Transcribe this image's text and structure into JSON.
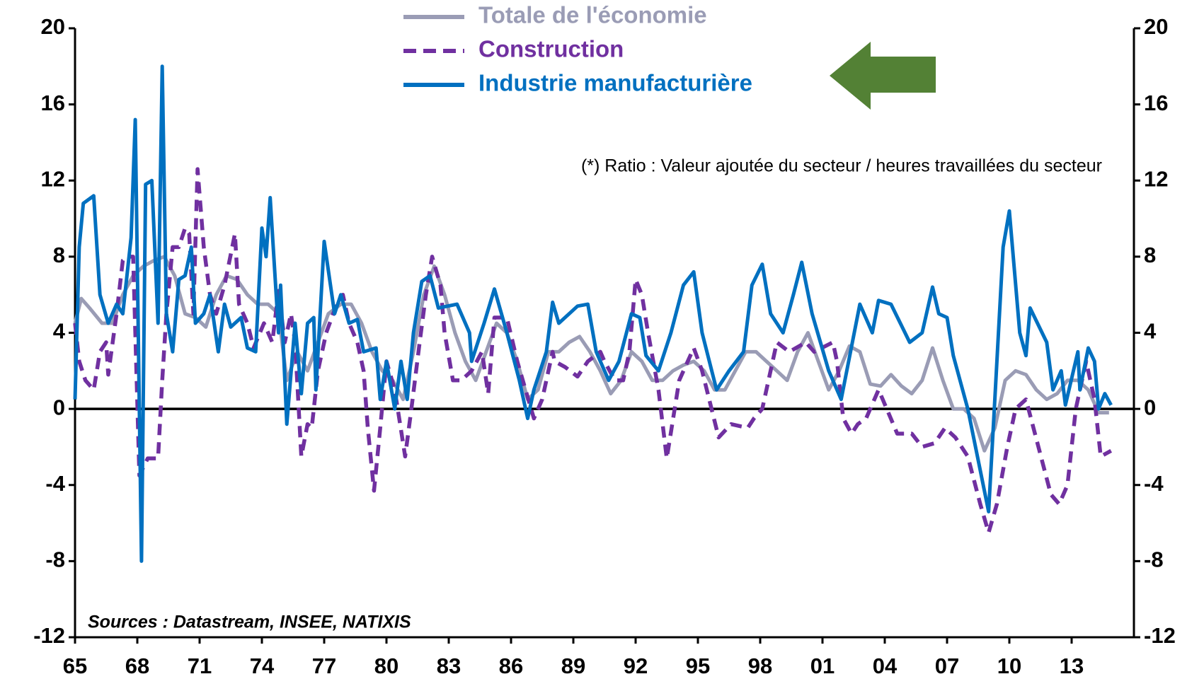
{
  "chart_data": {
    "type": "line",
    "annotation": "(*) Ratio : Valeur ajoutée du secteur / heures travaillées du secteur",
    "source": "Sources : Datastream, INSEE, NATIXIS",
    "legend": "top",
    "xlim": [
      1965,
      2016
    ],
    "xticks": [
      {
        "value": 1965,
        "label": "65"
      },
      {
        "value": 1968,
        "label": "68"
      },
      {
        "value": 1971,
        "label": "71"
      },
      {
        "value": 1974,
        "label": "74"
      },
      {
        "value": 1977,
        "label": "77"
      },
      {
        "value": 1980,
        "label": "80"
      },
      {
        "value": 1983,
        "label": "83"
      },
      {
        "value": 1986,
        "label": "86"
      },
      {
        "value": 1989,
        "label": "89"
      },
      {
        "value": 1992,
        "label": "92"
      },
      {
        "value": 1995,
        "label": "95"
      },
      {
        "value": 1998,
        "label": "98"
      },
      {
        "value": 2001,
        "label": "01"
      },
      {
        "value": 2004,
        "label": "04"
      },
      {
        "value": 2007,
        "label": "07"
      },
      {
        "value": 2010,
        "label": "10"
      },
      {
        "value": 2013,
        "label": "13"
      }
    ],
    "ylim": [
      -12,
      20
    ],
    "yticks": [
      -12,
      -8,
      -4,
      0,
      4,
      8,
      12,
      16,
      20
    ],
    "y2lim": [
      -12,
      20
    ],
    "y2ticks": [
      -12,
      -8,
      -4,
      0,
      4,
      8,
      12,
      16,
      20
    ],
    "series": [
      {
        "name": "Totale de l'économie",
        "color": "#9a9cb5",
        "style": "solid",
        "x": [
          1965.0,
          1965.3,
          1965.7,
          1966.3,
          1966.8,
          1967.3,
          1967.8,
          1968.3,
          1968.8,
          1969.3,
          1969.8,
          1970.3,
          1970.8,
          1971.3,
          1971.8,
          1972.3,
          1972.8,
          1973.3,
          1973.8,
          1974.3,
          1974.8,
          1975.2,
          1975.7,
          1976.2,
          1976.7,
          1977.2,
          1977.8,
          1978.3,
          1978.8,
          1979.3,
          1979.8,
          1980.3,
          1980.8,
          1981.3,
          1981.8,
          1982.3,
          1982.8,
          1983.3,
          1983.8,
          1984.3,
          1984.8,
          1985.3,
          1985.8,
          1986.3,
          1986.8,
          1987.3,
          1987.8,
          1988.3,
          1988.8,
          1989.3,
          1989.8,
          1990.3,
          1990.8,
          1991.3,
          1991.8,
          1992.3,
          1992.8,
          1993.3,
          1993.8,
          1994.3,
          1994.8,
          1995.3,
          1995.8,
          1996.3,
          1996.8,
          1997.3,
          1997.8,
          1998.3,
          1998.8,
          1999.3,
          1999.8,
          2000.3,
          2000.8,
          2001.3,
          2001.8,
          2002.3,
          2002.8,
          2003.3,
          2003.8,
          2004.3,
          2004.8,
          2005.3,
          2005.8,
          2006.3,
          2006.8,
          2007.3,
          2007.8,
          2008.3,
          2008.8,
          2009.3,
          2009.8,
          2010.3,
          2010.8,
          2011.3,
          2011.8,
          2012.3,
          2012.8,
          2013.3,
          2013.8,
          2014.3,
          2014.8
        ],
        "values": [
          4.5,
          5.8,
          5.3,
          4.5,
          4.5,
          6,
          7,
          7.5,
          7.8,
          8,
          7,
          5,
          4.8,
          4.3,
          6,
          7,
          6.8,
          6,
          5.5,
          5.5,
          5,
          1.5,
          3,
          2,
          3.5,
          5,
          5.5,
          5.5,
          4.5,
          3,
          2,
          1.5,
          0.5,
          3,
          6,
          7.5,
          6,
          4,
          2.5,
          1.5,
          3,
          4.5,
          4,
          2.5,
          0.5,
          1,
          3,
          3,
          3.5,
          3.8,
          3,
          2,
          0.8,
          1.5,
          3,
          2.5,
          1.5,
          1.5,
          2,
          2.3,
          2.5,
          2,
          1,
          1,
          2,
          3,
          3,
          2.5,
          2,
          1.5,
          3,
          4,
          2.5,
          1,
          2,
          3.3,
          3,
          1.3,
          1.2,
          1.8,
          1.2,
          0.8,
          1.5,
          3.2,
          1.5,
          0,
          0,
          -0.5,
          -2.2,
          -1,
          1.5,
          2,
          1.8,
          1,
          0.5,
          0.8,
          1.5,
          1.5,
          1,
          -0.2,
          -0.2
        ]
      },
      {
        "name": "Construction",
        "color": "#7030a0",
        "style": "dashed",
        "x": [
          1965.0,
          1965.2,
          1965.5,
          1965.9,
          1966.2,
          1966.5,
          1966.6,
          1967.0,
          1967.3,
          1967.5,
          1967.8,
          1968.1,
          1968.5,
          1969.0,
          1969.2,
          1969.4,
          1969.7,
          1970.0,
          1970.3,
          1970.5,
          1970.7,
          1970.9,
          1971.2,
          1971.5,
          1971.8,
          1972.2,
          1972.7,
          1972.9,
          1973.3,
          1973.6,
          1974.1,
          1974.5,
          1974.8,
          1975.1,
          1975.4,
          1975.6,
          1975.9,
          1976.2,
          1976.4,
          1976.7,
          1977.1,
          1977.5,
          1977.9,
          1978.2,
          1978.6,
          1978.9,
          1979.1,
          1979.4,
          1979.7,
          1980.0,
          1980.4,
          1980.9,
          1981.2,
          1981.6,
          1981.9,
          1982.2,
          1982.6,
          1982.8,
          1983.2,
          1983.6,
          1984.1,
          1984.6,
          1984.9,
          1985.2,
          1985.8,
          1986.3,
          1986.7,
          1987.1,
          1987.5,
          1988.0,
          1988.1,
          1988.6,
          1989.2,
          1989.7,
          1990.3,
          1990.5,
          1991.0,
          1991.4,
          1991.7,
          1992.0,
          1992.3,
          1992.6,
          1993.1,
          1993.5,
          1994.1,
          1994.8,
          1995.2,
          1996.0,
          1996.6,
          1997.4,
          1997.7,
          1998.1,
          1998.8,
          1999.4,
          2000.2,
          2000.6,
          2001.5,
          2001.7,
          2002.0,
          2002.4,
          2002.7,
          2003.1,
          2003.7,
          2003.9,
          2004.6,
          2005.3,
          2005.8,
          2006.4,
          2006.9,
          2007.4,
          2008.0,
          2008.6,
          2009.0,
          2009.4,
          2009.9,
          2010.3,
          2010.8,
          2011.4,
          2012.0,
          2012.4,
          2012.8,
          2013.2,
          2013.7,
          2014.1,
          2014.4,
          2014.9
        ],
        "values": [
          4.5,
          2.5,
          1.5,
          1,
          3,
          3.5,
          1.8,
          5,
          7.8,
          8,
          8,
          -3.5,
          -2.6,
          -2.6,
          1.5,
          5,
          8.5,
          8.5,
          9.5,
          9.2,
          5,
          12.6,
          8.5,
          6,
          5,
          6.5,
          9.2,
          5.5,
          4.5,
          3.2,
          4.5,
          3.5,
          6.2,
          3.5,
          5,
          3.5,
          -2.5,
          -0.8,
          -1,
          2,
          4,
          5.2,
          6,
          4.5,
          3.5,
          2,
          -1,
          -4.3,
          -1,
          2.5,
          1,
          -2.5,
          0,
          3.5,
          6,
          8,
          6.5,
          4,
          1.5,
          1.5,
          2,
          3,
          0.8,
          4.8,
          4.8,
          2.5,
          1,
          -0.5,
          0.5,
          3,
          2.5,
          2.2,
          1.7,
          2.5,
          3,
          2.5,
          1.5,
          1.5,
          3,
          6.8,
          6,
          4,
          1,
          -2.6,
          1.5,
          3.2,
          2,
          -1.5,
          -0.8,
          -1,
          -0.5,
          0,
          3.5,
          3,
          3.5,
          3,
          3.5,
          2.5,
          -0.5,
          -1.3,
          -0.8,
          -0.5,
          1,
          0.5,
          -1.3,
          -1.3,
          -2,
          -1.8,
          -1,
          -1.5,
          -2.5,
          -5,
          -6.5,
          -5,
          -2,
          0,
          0.5,
          -2,
          -4.5,
          -5,
          -4,
          0,
          2.5,
          0.5,
          -2.5,
          -2.2
        ]
      },
      {
        "name": "Industrie manufacturière",
        "color": "#0070c0",
        "style": "solid",
        "x": [
          1965.0,
          1965.2,
          1965.4,
          1965.9,
          1966.2,
          1966.6,
          1967.0,
          1967.3,
          1967.7,
          1967.9,
          1968.2,
          1968.4,
          1968.7,
          1969.0,
          1969.2,
          1969.4,
          1969.7,
          1970.0,
          1970.3,
          1970.6,
          1970.8,
          1971.2,
          1971.5,
          1971.9,
          1972.2,
          1972.5,
          1973.0,
          1973.3,
          1973.7,
          1974.0,
          1974.2,
          1974.4,
          1974.8,
          1974.9,
          1975.2,
          1975.6,
          1975.9,
          1976.2,
          1976.5,
          1976.6,
          1977.0,
          1977.5,
          1977.8,
          1978.2,
          1978.6,
          1978.9,
          1979.5,
          1979.7,
          1980.0,
          1980.4,
          1980.7,
          1981.0,
          1981.3,
          1981.7,
          1982.1,
          1982.5,
          1983.4,
          1984.0,
          1984.1,
          1984.7,
          1985.2,
          1985.8,
          1986.4,
          1986.8,
          1987.1,
          1987.7,
          1988.0,
          1988.3,
          1989.2,
          1989.7,
          1990.1,
          1990.7,
          1991.2,
          1991.8,
          1992.2,
          1992.5,
          1993.1,
          1993.7,
          1994.3,
          1994.8,
          1995.2,
          1995.9,
          1996.5,
          1997.2,
          1997.6,
          1998.1,
          1998.5,
          1999.1,
          1999.6,
          2000.0,
          2000.5,
          2000.9,
          2001.3,
          2001.9,
          2002.8,
          2003.4,
          2003.7,
          2004.3,
          2005.2,
          2005.8,
          2006.3,
          2006.6,
          2007.0,
          2007.3,
          2008.0,
          2009.0,
          2009.3,
          2009.7,
          2010.0,
          2010.5,
          2010.8,
          2011.0,
          2011.8,
          2012.1,
          2012.5,
          2012.7,
          2013.3,
          2013.4,
          2013.8,
          2014.1,
          2014.3,
          2014.6,
          2014.9
        ],
        "values": [
          0.5,
          8.5,
          10.8,
          11.2,
          6,
          4.5,
          5.5,
          5,
          9,
          15.2,
          -8,
          11.8,
          12,
          4.5,
          18,
          5,
          3,
          6.8,
          7,
          8.5,
          4.5,
          5,
          6,
          3,
          5.5,
          4.3,
          4.8,
          3.2,
          3,
          9.5,
          8,
          11.1,
          4,
          6.5,
          -0.8,
          4.5,
          0.8,
          4.5,
          4.8,
          1,
          8.8,
          5,
          6,
          4.5,
          4.7,
          3,
          3.2,
          0.5,
          2.5,
          0,
          2.5,
          0.5,
          4,
          6.7,
          7,
          5.3,
          5.5,
          4,
          2.5,
          4.5,
          6.3,
          4,
          1.5,
          -0.5,
          1,
          3,
          5.6,
          4.5,
          5.4,
          5.5,
          3,
          1.5,
          2.5,
          5,
          4.8,
          2.8,
          2,
          4,
          6.5,
          7.2,
          4,
          1,
          2,
          3,
          6.5,
          7.6,
          5,
          4,
          6,
          7.7,
          5,
          3.5,
          2,
          0.5,
          5.5,
          4,
          5.7,
          5.5,
          3.5,
          4,
          6.4,
          5,
          4.8,
          2.8,
          0,
          -5.4,
          0.5,
          8.5,
          10.4,
          4,
          2.8,
          5.3,
          3.5,
          1,
          2,
          0.2,
          3,
          1,
          3.2,
          2.5,
          0,
          0.8,
          0.2
        ]
      }
    ]
  }
}
